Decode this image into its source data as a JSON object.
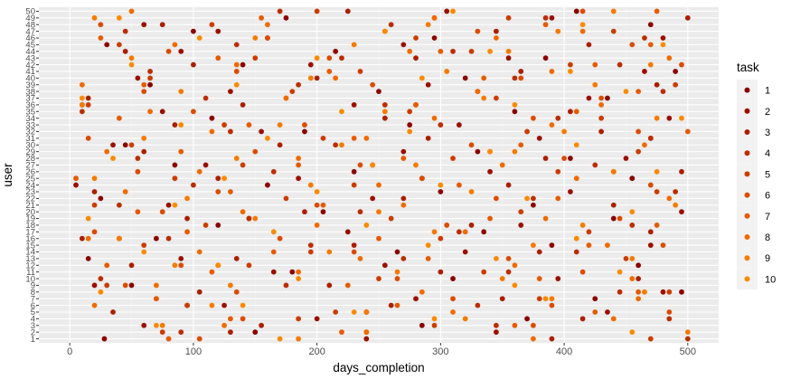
{
  "colors": {
    "panel_background": "#ebebeb",
    "grid_major": "#ffffff",
    "grid_minor": "#f2f2f2",
    "task_palette": [
      "#8b0000",
      "#9b0f00",
      "#ab1e00",
      "#bb2d00",
      "#cb3c00",
      "#db4b00",
      "#e65a00",
      "#f06a00",
      "#f57a00",
      "#fa8a00"
    ]
  },
  "chart_data": {
    "type": "scatter",
    "title": "",
    "xlabel": "days_completion",
    "ylabel": "user",
    "xlim": [
      -25,
      525
    ],
    "x_ticks": [
      0,
      100,
      200,
      300,
      400,
      500
    ],
    "y_categories": [
      "1",
      "2",
      "3",
      "4",
      "5",
      "6",
      "7",
      "8",
      "9",
      "10",
      "11",
      "12",
      "13",
      "14",
      "15",
      "16",
      "17",
      "18",
      "19",
      "20",
      "21",
      "22",
      "23",
      "24",
      "25",
      "26",
      "27",
      "28",
      "29",
      "30",
      "31",
      "32",
      "33",
      "34",
      "35",
      "36",
      "37",
      "38",
      "39",
      "40",
      "41",
      "42",
      "43",
      "44",
      "45",
      "46",
      "47",
      "48",
      "49",
      "50"
    ],
    "grid": true,
    "legend": {
      "title": "task",
      "position": "right",
      "entries": [
        "1",
        "2",
        "3",
        "4",
        "5",
        "6",
        "7",
        "8",
        "9",
        "10"
      ]
    },
    "series": [
      {
        "name": "1",
        "x": [
          28,
          150,
          285,
          370,
          240,
          95,
          425,
          495,
          50,
          310,
          180,
          460,
          15,
          265,
          390,
          70,
          335,
          120,
          440,
          205,
          375,
          25,
          300,
          160,
          455,
          230,
          85,
          405,
          330,
          45,
          470,
          190,
          275,
          115,
          360,
          10,
          435,
          250,
          65,
          320,
          490,
          140,
          385,
          215,
          30,
          295,
          100,
          470,
          175,
          410
        ],
        "y": [
          1,
          2,
          3,
          4,
          5,
          6,
          7,
          8,
          9,
          10,
          11,
          12,
          13,
          14,
          15,
          16,
          17,
          18,
          19,
          20,
          21,
          22,
          23,
          24,
          25,
          26,
          27,
          28,
          29,
          30,
          31,
          32,
          33,
          34,
          35,
          36,
          37,
          38,
          39,
          40,
          41,
          42,
          43,
          44,
          45,
          46,
          47,
          48,
          49,
          50
        ]
      },
      {
        "name": "2",
        "x": [
          345,
          60,
          200,
          435,
          125,
          280,
          480,
          20,
          395,
          165,
          255,
          90,
          320,
          470,
          40,
          225,
          365,
          145,
          495,
          80,
          245,
          405,
          5,
          185,
          340,
          110,
          450,
          270,
          35,
          380,
          155,
          315,
          485,
          75,
          230,
          420,
          130,
          290,
          55,
          465,
          195,
          355,
          90,
          270,
          480,
          120,
          60,
          390,
          305,
          240
        ],
        "y": [
          2,
          3,
          4,
          5,
          6,
          7,
          8,
          9,
          10,
          11,
          12,
          13,
          14,
          15,
          16,
          17,
          18,
          19,
          20,
          21,
          22,
          23,
          24,
          25,
          26,
          27,
          28,
          29,
          30,
          31,
          32,
          33,
          34,
          35,
          36,
          37,
          38,
          39,
          40,
          41,
          42,
          43,
          44,
          45,
          46,
          47,
          48,
          49,
          50,
          1
        ]
      },
      {
        "name": "3",
        "x": [
          155,
          415,
          35,
          260,
          350,
          105,
          210,
          460,
          300,
          50,
          135,
          380,
          230,
          10,
          470,
          325,
          95,
          190,
          440,
          270,
          20,
          355,
          120,
          495,
          245,
          385,
          60,
          170,
          290,
          430,
          85,
          255,
          405,
          140,
          15,
          330,
          475,
          200,
          365,
          100,
          280,
          45,
          420,
          160,
          345,
          75,
          500,
          225,
          390,
          130
        ],
        "y": [
          3,
          4,
          5,
          6,
          7,
          8,
          9,
          10,
          11,
          12,
          13,
          14,
          15,
          16,
          17,
          18,
          19,
          20,
          21,
          22,
          23,
          24,
          25,
          26,
          27,
          28,
          29,
          30,
          31,
          32,
          33,
          34,
          35,
          36,
          37,
          38,
          39,
          40,
          41,
          42,
          43,
          44,
          45,
          46,
          47,
          48,
          49,
          50,
          1,
          2
        ]
      },
      {
        "name": "4",
        "x": [
          485,
          240,
          330,
          70,
          445,
          175,
          25,
          355,
          120,
          270,
          410,
          195,
          80,
          315,
          455,
          145,
          235,
          40,
          375,
          490,
          100,
          285,
          165,
          425,
          55,
          340,
          215,
          470,
          130,
          300,
          395,
          10,
          255,
          110,
          480,
          185,
          360,
          65,
          445,
          220,
          310,
          135,
          465,
          45,
          260,
          385,
          170,
          500,
          90,
          345
        ],
        "y": [
          4,
          5,
          6,
          7,
          8,
          9,
          10,
          11,
          12,
          13,
          14,
          15,
          16,
          17,
          18,
          19,
          20,
          21,
          22,
          23,
          24,
          25,
          26,
          27,
          28,
          29,
          30,
          31,
          32,
          33,
          34,
          35,
          36,
          37,
          38,
          39,
          40,
          41,
          42,
          43,
          44,
          45,
          46,
          47,
          48,
          49,
          50,
          1,
          2,
          3
        ]
      },
      {
        "name": "5",
        "x": [
          215,
          95,
          380,
          485,
          30,
          250,
          335,
          145,
          450,
          195,
          60,
          300,
          420,
          110,
          260,
          365,
          20,
          175,
          475,
          230,
          85,
          395,
          140,
          310,
          460,
          50,
          205,
          370,
          125,
          430,
          275,
          15,
          345,
          180,
          490,
          65,
          235,
          405,
          150,
          325,
          40,
          280,
          440,
          115,
          355,
          200,
          470,
          75,
          295,
          185
        ],
        "y": [
          5,
          6,
          7,
          8,
          9,
          10,
          11,
          12,
          13,
          14,
          15,
          16,
          17,
          18,
          19,
          20,
          21,
          22,
          23,
          24,
          25,
          26,
          27,
          28,
          29,
          30,
          31,
          32,
          33,
          34,
          35,
          36,
          37,
          38,
          39,
          40,
          41,
          42,
          43,
          44,
          45,
          46,
          47,
          48,
          49,
          50,
          1,
          2,
          3,
          4
        ]
      },
      {
        "name": "6",
        "x": [
          390,
          310,
          135,
          45,
          265,
          415,
          90,
          355,
          230,
          480,
          170,
          20,
          305,
          445,
          75,
          200,
          345,
          120,
          470,
          285,
          55,
          235,
          400,
          150,
          325,
          15,
          460,
          190,
          375,
          100,
          280,
          430,
          60,
          245,
          365,
          135,
          495,
          210,
          80,
          455,
          160,
          330,
          25,
          295,
          415,
          105,
          240,
          375,
          140,
          485
        ],
        "y": [
          6,
          7,
          8,
          9,
          10,
          11,
          12,
          13,
          14,
          15,
          16,
          17,
          18,
          19,
          20,
          21,
          22,
          23,
          24,
          25,
          26,
          27,
          28,
          29,
          30,
          31,
          32,
          33,
          34,
          35,
          36,
          37,
          38,
          39,
          40,
          41,
          42,
          43,
          44,
          45,
          46,
          47,
          48,
          49,
          50,
          1,
          2,
          3,
          4,
          5
        ]
      },
      {
        "name": "7",
        "x": [
          70,
          460,
          225,
          380,
          115,
          30,
          290,
          165,
          420,
          250,
          95,
          475,
          340,
          55,
          205,
          395,
          130,
          315,
          5,
          440,
          185,
          270,
          90,
          365,
          230,
          500,
          145,
          40,
          410,
          280,
          175,
          460,
          60,
          335,
          210,
          425,
          120,
          300,
          470,
          25,
          255,
          385,
          155,
          475,
          80,
          220,
          360,
          130,
          425,
          265
        ],
        "y": [
          7,
          8,
          9,
          10,
          11,
          12,
          13,
          14,
          15,
          16,
          17,
          18,
          19,
          20,
          21,
          22,
          23,
          24,
          25,
          26,
          27,
          28,
          29,
          30,
          31,
          32,
          33,
          34,
          35,
          36,
          37,
          38,
          39,
          40,
          41,
          42,
          43,
          44,
          45,
          46,
          47,
          48,
          49,
          50,
          1,
          2,
          3,
          4,
          5,
          6
        ]
      },
      {
        "name": "8",
        "x": [
          285,
          70,
          455,
          185,
          360,
          235,
          105,
          435,
          15,
          320,
          200,
          385,
          140,
          270,
          485,
          45,
          250,
          410,
          105,
          350,
          185,
          30,
          465,
          240,
          115,
          390,
          295,
          65,
          430,
          175,
          330,
          10,
          215,
          390,
          135,
          485,
          275,
          85,
          345,
          415,
          160,
          295,
          50,
          375,
          240,
          125,
          440,
          310,
          20,
          460
        ],
        "y": [
          8,
          9,
          10,
          11,
          12,
          13,
          14,
          15,
          16,
          17,
          18,
          19,
          20,
          21,
          22,
          23,
          24,
          25,
          26,
          27,
          28,
          29,
          30,
          31,
          32,
          33,
          34,
          35,
          36,
          37,
          38,
          39,
          40,
          41,
          42,
          43,
          44,
          45,
          46,
          47,
          48,
          49,
          50,
          1,
          2,
          3,
          4,
          5,
          6,
          7
        ]
      },
      {
        "name": "9",
        "x": [
          130,
          350,
          265,
          85,
          455,
          210,
          375,
          40,
          295,
          415,
          150,
          250,
          490,
          95,
          325,
          195,
          20,
          440,
          280,
          135,
          360,
          220,
          60,
          400,
          170,
          475,
          255,
          10,
          335,
          90,
          425,
          195,
          305,
          470,
          50,
          355,
          230,
          150,
          395,
          290,
          20,
          440,
          185,
          500,
          75,
          320,
          240,
          115,
          390,
          465
        ],
        "y": [
          9,
          10,
          11,
          12,
          13,
          14,
          15,
          16,
          17,
          18,
          19,
          20,
          21,
          22,
          23,
          24,
          25,
          26,
          27,
          28,
          29,
          30,
          31,
          32,
          33,
          34,
          35,
          36,
          37,
          38,
          39,
          40,
          41,
          42,
          43,
          44,
          45,
          46,
          47,
          48,
          49,
          50,
          1,
          2,
          3,
          4,
          5,
          6,
          7,
          8
        ]
      },
      {
        "name": "10",
        "x": [
          185,
          445,
          120,
          345,
          60,
          290,
          410,
          165,
          240,
          15,
          455,
          85,
          370,
          200,
          300,
          125,
          475,
          245,
          35,
          340,
          410,
          160,
          275,
          90,
          495,
          220,
          360,
          10,
          450,
          135,
          285,
          405,
          50,
          200,
          340,
          480,
          105,
          255,
          415,
          40,
          310,
          170,
          455,
          70,
          295,
          230,
          140,
          385,
          25,
          360
        ],
        "y": [
          10,
          11,
          12,
          13,
          14,
          15,
          16,
          17,
          18,
          19,
          20,
          21,
          22,
          23,
          24,
          25,
          26,
          27,
          28,
          29,
          30,
          31,
          32,
          33,
          34,
          35,
          36,
          37,
          38,
          39,
          40,
          41,
          42,
          43,
          44,
          45,
          46,
          47,
          48,
          49,
          50,
          1,
          2,
          3,
          4,
          5,
          6,
          7,
          8,
          9
        ]
      }
    ]
  }
}
